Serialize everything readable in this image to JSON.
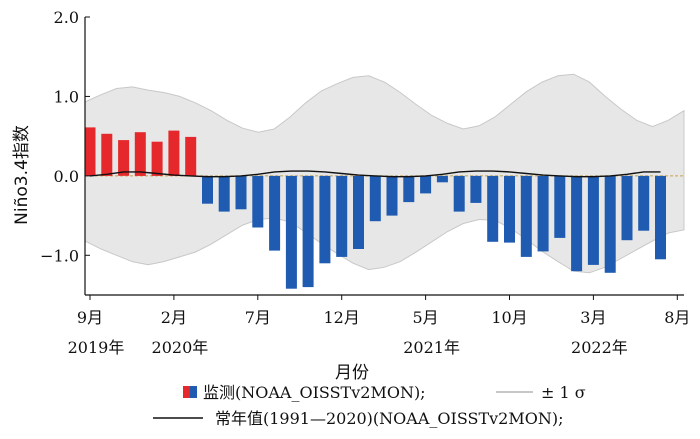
{
  "chart_data": {
    "type": "bar",
    "ylabel": "Niño3.4指数",
    "xlabel": "月份",
    "ylim": [
      -1.5,
      2.0
    ],
    "yticks": [
      2.0,
      1.0,
      0.0,
      -1.0
    ],
    "ytick_labels": [
      "2.0",
      "1.0",
      "0.0",
      "−1.0"
    ],
    "x_tick_labels": [
      {
        "month": "9月",
        "year": "2019年",
        "index": 0
      },
      {
        "month": "2月",
        "year": "2020年",
        "index": 5
      },
      {
        "month": "7月",
        "year": "",
        "index": 10
      },
      {
        "month": "12月",
        "year": "",
        "index": 15
      },
      {
        "month": "5月",
        "year": "2021年",
        "index": 20
      },
      {
        "month": "10月",
        "year": "",
        "index": 25
      },
      {
        "month": "3月",
        "year": "2022年",
        "index": 30
      },
      {
        "month": "8月",
        "year": "",
        "index": 35
      }
    ],
    "series": [
      {
        "name": "监测(NOAA_OISSTv2MON);",
        "values": [
          0.61,
          0.53,
          0.45,
          0.55,
          0.43,
          0.57,
          0.49,
          -0.35,
          -0.45,
          -0.42,
          -0.65,
          -0.94,
          -1.42,
          -1.4,
          -1.1,
          -1.02,
          -0.92,
          -0.57,
          -0.5,
          -0.33,
          -0.22,
          -0.08,
          -0.45,
          -0.34,
          -0.83,
          -0.84,
          -1.02,
          -0.95,
          -0.78,
          -1.2,
          -1.12,
          -1.22,
          -0.81,
          -0.69,
          -1.05
        ]
      },
      {
        "name": "±1σ",
        "upper": [
          0.93,
          1.02,
          1.1,
          1.12,
          1.08,
          1.05,
          1.0,
          0.92,
          0.82,
          0.7,
          0.6,
          0.55,
          0.59,
          0.74,
          0.92,
          1.07,
          1.16,
          1.24,
          1.26,
          1.18,
          1.05,
          0.9,
          0.76,
          0.66,
          0.59,
          0.63,
          0.74,
          0.9,
          1.06,
          1.18,
          1.26,
          1.28,
          1.18,
          1.0,
          0.84,
          0.7,
          0.62,
          0.7,
          0.82
        ],
        "lower": [
          -0.82,
          -0.92,
          -1.0,
          -1.08,
          -1.12,
          -1.08,
          -1.02,
          -0.96,
          -0.86,
          -0.74,
          -0.62,
          -0.55,
          -0.53,
          -0.58,
          -0.71,
          -0.85,
          -0.98,
          -1.1,
          -1.18,
          -1.15,
          -1.08,
          -0.96,
          -0.83,
          -0.7,
          -0.6,
          -0.55,
          -0.56,
          -0.66,
          -0.8,
          -0.95,
          -1.08,
          -1.2,
          -1.22,
          -1.15,
          -1.04,
          -0.93,
          -0.82,
          -0.72,
          -0.68
        ]
      },
      {
        "name": "常年值(1991—2020)(NOAA_OISSTv2MON);",
        "values": [
          0.0,
          0.02,
          0.05,
          0.05,
          0.03,
          0.01,
          0.0,
          -0.01,
          -0.01,
          0.0,
          0.02,
          0.05,
          0.06,
          0.06,
          0.05,
          0.03,
          0.01,
          0.0,
          -0.01,
          -0.01,
          0.0,
          0.02,
          0.05,
          0.06,
          0.06,
          0.05,
          0.03,
          0.01,
          0.0,
          -0.01,
          -0.01,
          0.0,
          0.02,
          0.05,
          0.05
        ]
      }
    ],
    "legend": {
      "placement": "bottom",
      "monitor_label": "监测(NOAA_OISSTv2MON);",
      "sigma_label": "± 1 σ",
      "clim_label": "常年值(1991—2020)(NOAA_OISSTv2MON);"
    },
    "colors": {
      "positive": "#e4282b",
      "negative": "#1f5bb0",
      "band": "#e7e7e7",
      "band_edge": "#c8c8c8",
      "climatology": "#111111",
      "zero_line": "#c8a04a"
    }
  }
}
